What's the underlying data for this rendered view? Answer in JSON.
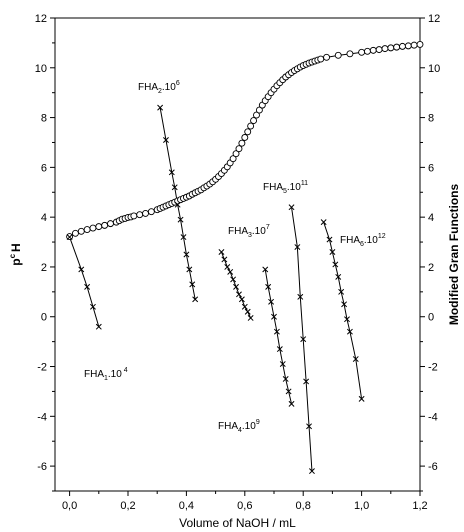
{
  "chart_data": {
    "type": "scatter",
    "xlabel": "Volume of NaOH / mL",
    "ylabel_left": "p",
    "ylabel_left_sup": "c",
    "ylabel_left_tail": "H",
    "ylabel_right": "Modified Gran Functions",
    "xlim": [
      -0.05,
      1.2
    ],
    "ylim": [
      -7,
      12
    ],
    "x_ticks": [
      "0,0",
      "0,2",
      "0,4",
      "0,6",
      "0,8",
      "1,0",
      "1,2"
    ],
    "x_tick_values": [
      0,
      0.2,
      0.4,
      0.6,
      0.8,
      1.0,
      1.2
    ],
    "y_ticks": [
      "-6",
      "-4",
      "-2",
      "0",
      "2",
      "4",
      "6",
      "8",
      "10",
      "12"
    ],
    "y_tick_values": [
      -6,
      -4,
      -2,
      0,
      2,
      4,
      6,
      8,
      10,
      12
    ],
    "grid": false,
    "pH_curve": {
      "marker": "circle",
      "points": [
        [
          0.0,
          3.22
        ],
        [
          0.02,
          3.35
        ],
        [
          0.04,
          3.43
        ],
        [
          0.06,
          3.5
        ],
        [
          0.08,
          3.56
        ],
        [
          0.1,
          3.62
        ],
        [
          0.12,
          3.67
        ],
        [
          0.14,
          3.74
        ],
        [
          0.16,
          3.8
        ],
        [
          0.17,
          3.86
        ],
        [
          0.18,
          3.92
        ],
        [
          0.19,
          3.95
        ],
        [
          0.2,
          3.99
        ],
        [
          0.21,
          4.01
        ],
        [
          0.22,
          4.05
        ],
        [
          0.24,
          4.1
        ],
        [
          0.26,
          4.15
        ],
        [
          0.28,
          4.22
        ],
        [
          0.3,
          4.3
        ],
        [
          0.31,
          4.35
        ],
        [
          0.32,
          4.4
        ],
        [
          0.33,
          4.45
        ],
        [
          0.34,
          4.5
        ],
        [
          0.35,
          4.55
        ],
        [
          0.36,
          4.6
        ],
        [
          0.37,
          4.65
        ],
        [
          0.38,
          4.7
        ],
        [
          0.39,
          4.75
        ],
        [
          0.4,
          4.8
        ],
        [
          0.41,
          4.85
        ],
        [
          0.42,
          4.92
        ],
        [
          0.43,
          4.98
        ],
        [
          0.44,
          5.04
        ],
        [
          0.45,
          5.1
        ],
        [
          0.46,
          5.18
        ],
        [
          0.47,
          5.25
        ],
        [
          0.48,
          5.33
        ],
        [
          0.49,
          5.42
        ],
        [
          0.5,
          5.52
        ],
        [
          0.51,
          5.63
        ],
        [
          0.52,
          5.75
        ],
        [
          0.53,
          5.88
        ],
        [
          0.54,
          6.02
        ],
        [
          0.55,
          6.18
        ],
        [
          0.56,
          6.35
        ],
        [
          0.57,
          6.55
        ],
        [
          0.58,
          6.75
        ],
        [
          0.59,
          6.97
        ],
        [
          0.6,
          7.2
        ],
        [
          0.61,
          7.43
        ],
        [
          0.62,
          7.66
        ],
        [
          0.63,
          7.88
        ],
        [
          0.64,
          8.1
        ],
        [
          0.65,
          8.3
        ],
        [
          0.66,
          8.5
        ],
        [
          0.67,
          8.68
        ],
        [
          0.68,
          8.84
        ],
        [
          0.69,
          9.0
        ],
        [
          0.7,
          9.14
        ],
        [
          0.71,
          9.28
        ],
        [
          0.72,
          9.4
        ],
        [
          0.73,
          9.52
        ],
        [
          0.74,
          9.63
        ],
        [
          0.75,
          9.72
        ],
        [
          0.76,
          9.81
        ],
        [
          0.77,
          9.89
        ],
        [
          0.78,
          9.96
        ],
        [
          0.79,
          10.03
        ],
        [
          0.8,
          10.09
        ],
        [
          0.81,
          10.14
        ],
        [
          0.82,
          10.19
        ],
        [
          0.83,
          10.23
        ],
        [
          0.84,
          10.27
        ],
        [
          0.85,
          10.31
        ],
        [
          0.86,
          10.35
        ],
        [
          0.88,
          10.42
        ],
        [
          0.92,
          10.5
        ],
        [
          0.96,
          10.56
        ],
        [
          1.0,
          10.62
        ],
        [
          1.02,
          10.66
        ],
        [
          1.04,
          10.7
        ],
        [
          1.06,
          10.73
        ],
        [
          1.08,
          10.77
        ],
        [
          1.1,
          10.8
        ],
        [
          1.12,
          10.83
        ],
        [
          1.14,
          10.86
        ],
        [
          1.16,
          10.88
        ],
        [
          1.18,
          10.91
        ],
        [
          1.2,
          10.94
        ]
      ]
    },
    "gran_series": [
      {
        "name": "FHA1",
        "label_main": "FHA",
        "label_sub": "1",
        "label_tail": ".10",
        "label_sup": " 4",
        "points": [
          [
            0.0,
            3.2
          ],
          [
            0.04,
            1.9
          ],
          [
            0.06,
            1.2
          ],
          [
            0.08,
            0.4
          ],
          [
            0.1,
            -0.4
          ]
        ]
      },
      {
        "name": "FHA2",
        "label_main": "FHA",
        "label_sub": "2",
        "label_tail": ".10",
        "label_sup": "6",
        "points": [
          [
            0.31,
            8.4
          ],
          [
            0.33,
            7.1
          ],
          [
            0.35,
            5.8
          ],
          [
            0.36,
            5.2
          ],
          [
            0.37,
            4.5
          ],
          [
            0.38,
            3.9
          ],
          [
            0.39,
            3.2
          ],
          [
            0.4,
            2.5
          ],
          [
            0.41,
            1.9
          ],
          [
            0.42,
            1.3
          ],
          [
            0.43,
            0.7
          ]
        ]
      },
      {
        "name": "FHA3",
        "label_main": "FHA",
        "label_sub": "3",
        "label_tail": ".10",
        "label_sup": "7",
        "points": [
          [
            0.52,
            2.6
          ],
          [
            0.53,
            2.3
          ],
          [
            0.54,
            2.0
          ],
          [
            0.55,
            1.8
          ],
          [
            0.56,
            1.5
          ],
          [
            0.57,
            1.2
          ],
          [
            0.58,
            0.9
          ],
          [
            0.59,
            0.7
          ],
          [
            0.6,
            0.4
          ],
          [
            0.61,
            0.2
          ],
          [
            0.62,
            -0.05
          ]
        ]
      },
      {
        "name": "FHA4",
        "label_main": "FHA",
        "label_sub": "4",
        "label_tail": ".10",
        "label_sup": "9",
        "points": [
          [
            0.67,
            1.9
          ],
          [
            0.68,
            1.2
          ],
          [
            0.69,
            0.6
          ],
          [
            0.7,
            0.0
          ],
          [
            0.71,
            -0.6
          ],
          [
            0.72,
            -1.3
          ],
          [
            0.73,
            -1.9
          ],
          [
            0.74,
            -2.5
          ],
          [
            0.75,
            -3.0
          ],
          [
            0.76,
            -3.5
          ]
        ]
      },
      {
        "name": "FHA5",
        "label_main": "FHA",
        "label_sub": "5",
        "label_tail": ".10",
        "label_sup": "11",
        "points": [
          [
            0.76,
            4.4
          ],
          [
            0.78,
            2.8
          ],
          [
            0.79,
            0.8
          ],
          [
            0.8,
            -0.9
          ],
          [
            0.81,
            -2.6
          ],
          [
            0.82,
            -4.4
          ],
          [
            0.83,
            -6.2
          ]
        ]
      },
      {
        "name": "FHA6",
        "label_main": "FHA",
        "label_sub": "6",
        "label_tail": ".10",
        "label_sup": "12",
        "points": [
          [
            0.87,
            3.8
          ],
          [
            0.89,
            3.1
          ],
          [
            0.9,
            2.6
          ],
          [
            0.91,
            2.1
          ],
          [
            0.92,
            1.6
          ],
          [
            0.93,
            1.0
          ],
          [
            0.94,
            0.5
          ],
          [
            0.95,
            -0.1
          ],
          [
            0.96,
            -0.6
          ],
          [
            0.98,
            -1.7
          ],
          [
            1.0,
            -3.3
          ]
        ]
      }
    ]
  }
}
